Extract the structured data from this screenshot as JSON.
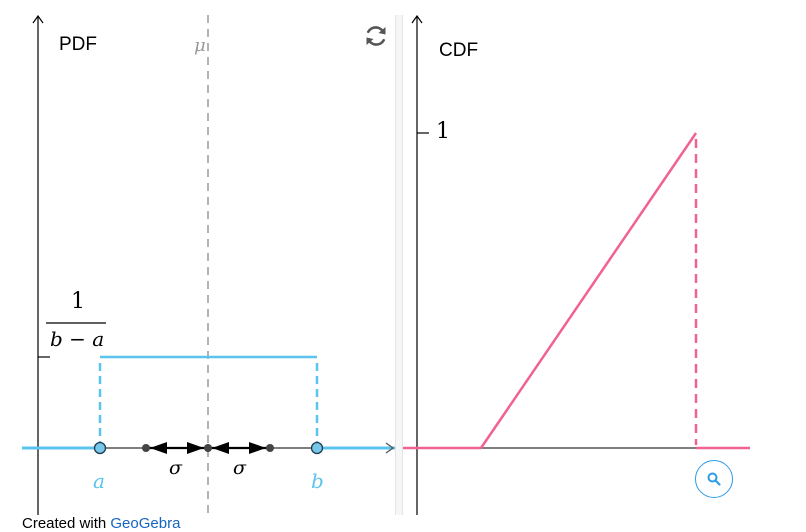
{
  "pdf_panel": {
    "title": "PDF",
    "mean_label": "μ",
    "density_numerator": "1",
    "density_denominator": "b − a",
    "lower_bound_label": "a",
    "upper_bound_label": "b",
    "sigma_label": "σ"
  },
  "cdf_panel": {
    "title": "CDF",
    "tick_one_label": "1"
  },
  "footer": {
    "prefix": "Created with ",
    "link_text": "GeoGebra"
  },
  "icons": {
    "reset": "refresh-icon",
    "zoom": "magnifier-icon"
  },
  "colors": {
    "pdf_curve": "#5bc4ee",
    "cdf_curve": "#f06292",
    "axis": "#555555",
    "mean_line": "#8a8a8a",
    "points_fill": "#77c7ea",
    "sigma_points": "#333333",
    "zoom_accent": "#2e9be6"
  }
}
